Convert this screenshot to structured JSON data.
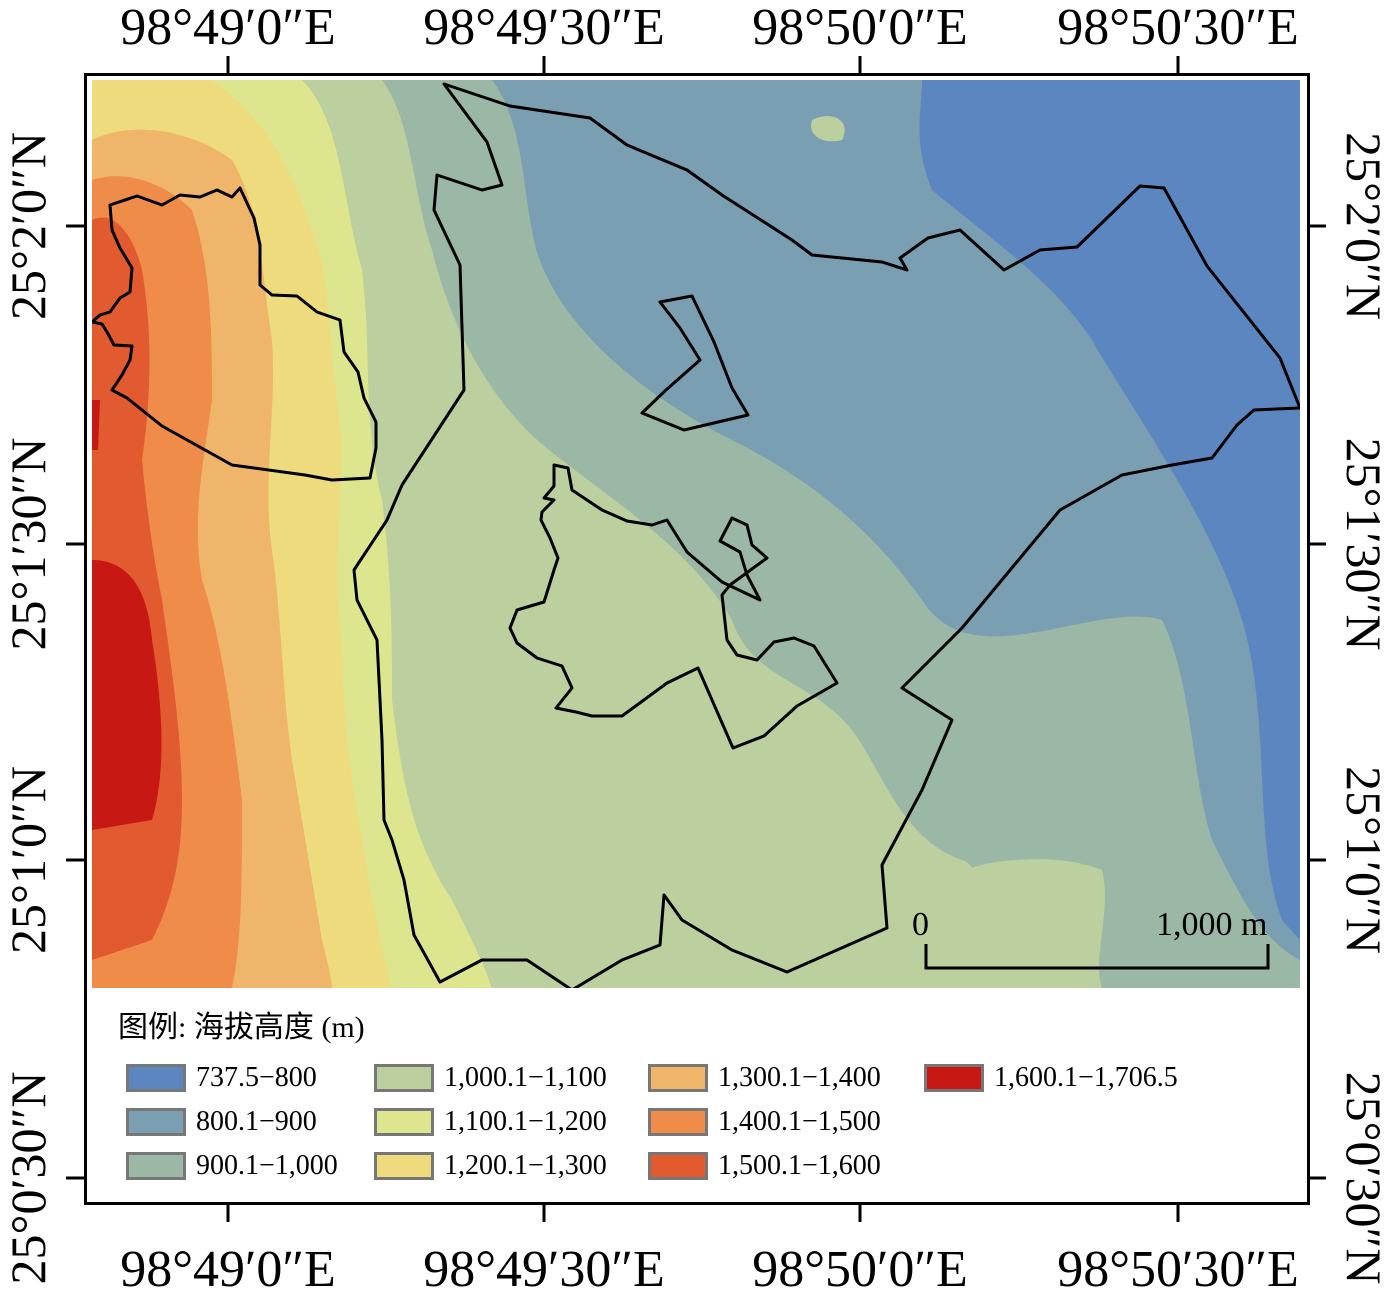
{
  "axes": {
    "top": [
      "98°49′0″E",
      "98°49′30″E",
      "98°50′0″E",
      "98°50′30″E"
    ],
    "bottom": [
      "98°49′0″E",
      "98°49′30″E",
      "98°50′0″E",
      "98°50′30″E"
    ],
    "left": [
      "25°2′0″N",
      "25°1′30″N",
      "25°1′0″N",
      "25°0′30″N"
    ],
    "right": [
      "25°2′0″N",
      "25°1′30″N",
      "25°1′0″N",
      "25°0′30″N"
    ]
  },
  "legend": {
    "title": "图例: 海拔高度 (m)",
    "items": [
      {
        "label": "737.5−800",
        "color": "#5b86c0"
      },
      {
        "label": "800.1−900",
        "color": "#7a9fb3"
      },
      {
        "label": "900.1−1,000",
        "color": "#9bb8a6"
      },
      {
        "label": "1,000.1−1,100",
        "color": "#bccf9e"
      },
      {
        "label": "1,100.1−1,200",
        "color": "#dde68e"
      },
      {
        "label": "1,200.1−1,300",
        "color": "#eedb7d"
      },
      {
        "label": "1,300.1−1,400",
        "color": "#efb66b"
      },
      {
        "label": "1,400.1−1,500",
        "color": "#ef8c4a"
      },
      {
        "label": "1,500.1−1,600",
        "color": "#e25a2f"
      },
      {
        "label": "1,600.1−1,706.5",
        "color": "#c81814"
      }
    ]
  },
  "scale_bar": {
    "start": "0",
    "end": "1,000 m"
  }
}
